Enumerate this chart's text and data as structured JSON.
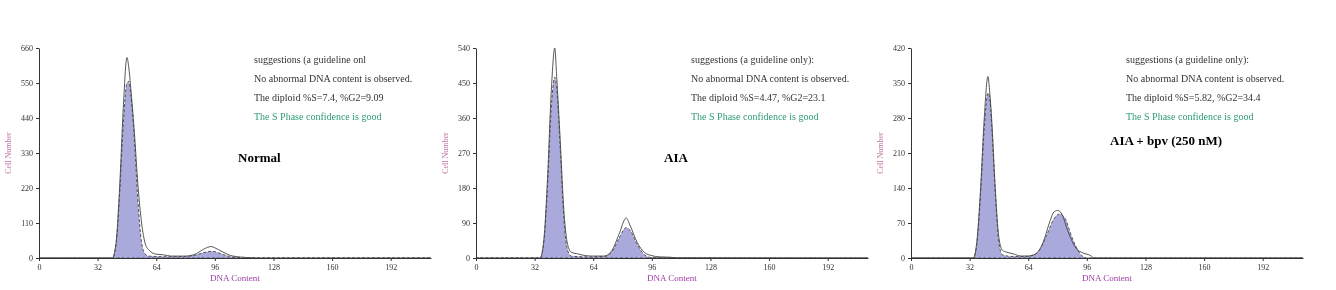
{
  "chart_data": [
    {
      "type": "area",
      "title": "Normal",
      "xlabel": "DNA Content",
      "ylabel": "Cell Number",
      "xlim": [
        0,
        214
      ],
      "xticks": [
        0,
        32,
        64,
        96,
        128,
        160,
        192
      ],
      "ylim": [
        0,
        660
      ],
      "yticks": [
        0,
        110,
        220,
        330,
        440,
        550,
        660
      ],
      "annotations": [
        "suggestions (a guideline onl",
        "No abnormal DNA content is observed.",
        "The diploid %S=7.4, %G2=9.09",
        "The S Phase confidence is good"
      ],
      "series": [
        {
          "color": "#9a9ad6",
          "x": [
            0,
            40,
            42,
            44,
            46,
            48,
            49,
            50,
            52,
            54,
            56,
            58,
            60,
            70,
            80,
            86,
            90,
            94,
            96,
            100,
            104,
            108,
            112,
            214
          ],
          "values": [
            0,
            0,
            40,
            200,
            420,
            550,
            555,
            520,
            380,
            180,
            50,
            12,
            6,
            4,
            5,
            10,
            17,
            21,
            20,
            12,
            5,
            2,
            0,
            0
          ]
        },
        {
          "type": "line",
          "color": "#444444",
          "x": [
            0,
            40,
            42,
            44,
            46,
            48,
            49,
            50,
            52,
            54,
            56,
            58,
            60,
            64,
            68,
            72,
            80,
            86,
            90,
            94,
            96,
            100,
            104,
            110,
            116,
            120,
            214
          ],
          "values": [
            0,
            0,
            45,
            220,
            470,
            630,
            600,
            540,
            400,
            230,
            110,
            45,
            25,
            12,
            10,
            6,
            6,
            14,
            28,
            36,
            32,
            20,
            9,
            3,
            1,
            0,
            0
          ]
        }
      ]
    },
    {
      "type": "area",
      "title": "AIA",
      "xlabel": "DNA Content",
      "ylabel": "Cell Number",
      "xlim": [
        0,
        214
      ],
      "xticks": [
        0,
        32,
        64,
        96,
        128,
        160,
        192
      ],
      "ylim": [
        0,
        540
      ],
      "yticks": [
        0,
        90,
        180,
        270,
        360,
        450,
        540
      ],
      "annotations": [
        "suggestions (a guideline only):",
        "No abnormal DNA content is observed.",
        "The diploid %S=4.47, %G2=23.1",
        "The S Phase confidence is good"
      ],
      "series": [
        {
          "color": "#9a9ad6",
          "x": [
            0,
            35,
            37,
            39,
            41,
            43,
            44,
            46,
            48,
            50,
            52,
            60,
            70,
            74,
            78,
            82,
            84,
            88,
            92,
            96,
            214
          ],
          "values": [
            0,
            0,
            40,
            180,
            380,
            465,
            440,
            280,
            100,
            20,
            5,
            3,
            4,
            15,
            50,
            78,
            72,
            35,
            8,
            1,
            0
          ]
        },
        {
          "type": "line",
          "color": "#444444",
          "x": [
            0,
            35,
            37,
            39,
            41,
            43,
            44,
            46,
            48,
            50,
            52,
            56,
            60,
            64,
            70,
            74,
            78,
            82,
            84,
            88,
            92,
            96,
            100,
            106,
            110,
            214
          ],
          "values": [
            0,
            0,
            45,
            200,
            420,
            540,
            470,
            300,
            120,
            35,
            15,
            10,
            6,
            5,
            5,
            18,
            60,
            103,
            85,
            40,
            14,
            6,
            3,
            2,
            0,
            0
          ]
        }
      ]
    },
    {
      "type": "area",
      "title": "AIA + bpv (250 nM)",
      "xlabel": "DNA Content",
      "ylabel": "Cell Number",
      "xlim": [
        0,
        214
      ],
      "xticks": [
        0,
        32,
        64,
        96,
        128,
        160,
        192
      ],
      "ylim": [
        0,
        420
      ],
      "yticks": [
        0,
        70,
        140,
        210,
        280,
        350,
        420
      ],
      "annotations": [
        "suggestions (a guideline only):",
        "No abnormal DNA content is observed.",
        "The diploid %S=5.82, %G2=34.4",
        "The S Phase confidence is good"
      ],
      "series": [
        {
          "color": "#9a9ad6",
          "x": [
            0,
            34,
            36,
            38,
            40,
            42,
            43,
            44,
            46,
            48,
            50,
            56,
            62,
            66,
            70,
            74,
            78,
            81,
            84,
            88,
            92,
            96,
            214
          ],
          "values": [
            0,
            0,
            30,
            130,
            260,
            330,
            320,
            270,
            130,
            30,
            6,
            3,
            3,
            5,
            15,
            45,
            78,
            88,
            80,
            40,
            10,
            0,
            0
          ]
        },
        {
          "type": "line",
          "color": "#444444",
          "x": [
            0,
            34,
            36,
            38,
            40,
            42,
            43,
            44,
            46,
            48,
            50,
            52,
            56,
            60,
            64,
            68,
            72,
            76,
            78,
            80,
            82,
            86,
            90,
            94,
            98,
            100,
            214
          ],
          "values": [
            0,
            0,
            35,
            140,
            280,
            363,
            330,
            280,
            140,
            40,
            15,
            12,
            8,
            4,
            4,
            8,
            30,
            75,
            92,
            95,
            90,
            50,
            20,
            10,
            5,
            0,
            0
          ]
        }
      ]
    }
  ]
}
